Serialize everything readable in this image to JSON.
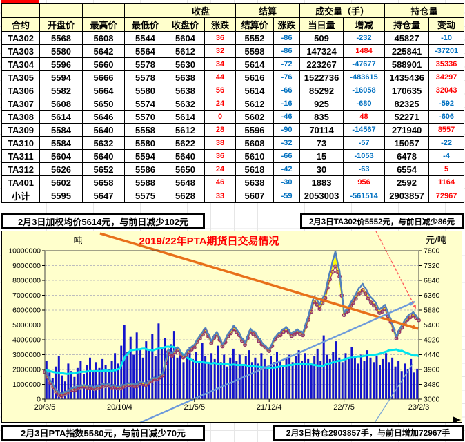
{
  "table": {
    "header_groups": [
      "收盘",
      "结算",
      "成交量（手）",
      "持仓量"
    ],
    "columns": [
      "合约",
      "开盘价",
      "最高价",
      "最低价",
      "收盘价",
      "涨跌",
      "结算价",
      "涨跌",
      "当日量",
      "增减",
      "持仓量",
      "变动"
    ],
    "rows": [
      [
        "TA302",
        "5568",
        "5608",
        "5544",
        "5604",
        "36",
        "5552",
        "-86",
        "509",
        "-232",
        "45827",
        "-10"
      ],
      [
        "TA303",
        "5580",
        "5642",
        "5564",
        "5612",
        "32",
        "5598",
        "-86",
        "147324",
        "1484",
        "225841",
        "-37201"
      ],
      [
        "TA304",
        "5596",
        "5660",
        "5578",
        "5630",
        "34",
        "5614",
        "-72",
        "223267",
        "-47677",
        "588901",
        "35336"
      ],
      [
        "TA305",
        "5594",
        "5666",
        "5578",
        "5638",
        "44",
        "5616",
        "-76",
        "1522736",
        "-483615",
        "1435436",
        "34297"
      ],
      [
        "TA306",
        "5582",
        "5664",
        "5580",
        "5638",
        "56",
        "5614",
        "-66",
        "85292",
        "-16058",
        "170635",
        "32043"
      ],
      [
        "TA307",
        "5608",
        "5650",
        "5574",
        "5632",
        "24",
        "5612",
        "-16",
        "925",
        "-680",
        "82325",
        "-592"
      ],
      [
        "TA308",
        "5614",
        "5646",
        "5570",
        "5614",
        "0",
        "5602",
        "-46",
        "835",
        "48",
        "52271",
        "-606"
      ],
      [
        "TA309",
        "5584",
        "5640",
        "5558",
        "5612",
        "28",
        "5596",
        "-90",
        "70114",
        "-14567",
        "271940",
        "8557"
      ],
      [
        "TA310",
        "5584",
        "5632",
        "5580",
        "5622",
        "38",
        "5608",
        "-32",
        "73",
        "-57",
        "15057",
        "-22"
      ],
      [
        "TA311",
        "5604",
        "5640",
        "5594",
        "5640",
        "36",
        "5610",
        "-66",
        "15",
        "-1053",
        "6478",
        "-4"
      ],
      [
        "TA312",
        "5626",
        "5652",
        "5586",
        "5650",
        "24",
        "5618",
        "-42",
        "30",
        "-63",
        "6554",
        "5"
      ],
      [
        "TA401",
        "5602",
        "5658",
        "5588",
        "5648",
        "46",
        "5638",
        "-30",
        "1883",
        "956",
        "2592",
        "1164"
      ],
      [
        "小计",
        "5595",
        "5647",
        "5575",
        "5628",
        "33",
        "5607",
        "-59",
        "2053003",
        "-561514",
        "2903857",
        "72967"
      ]
    ],
    "positive_color": "#FF0000",
    "negative_color": "#0070C0"
  },
  "callouts": {
    "top_left": "2月3日加权均价5614元，与前日减少102元",
    "top_right": "2月3日TA302价5552元，与前日减少86元",
    "bottom_left": "2月3日PTA指数5580元，与前日减少70元",
    "bottom_right": "2月3日持仓2903857手，与前日增加72967手"
  },
  "chart_data": {
    "type": "bar",
    "title": "2019/22年PTA期货日交易情况",
    "title_color": "#FF0000",
    "left_axis": {
      "label": "吨",
      "min": 0,
      "max": 10000000,
      "step": 1000000
    },
    "right_axis": {
      "label": "元/吨",
      "min": 3000,
      "max": 7800,
      "step": 480
    },
    "x_ticks": [
      "20/3/5",
      "20/10/4",
      "21/5/5",
      "21/12/4",
      "22/7/5",
      "23/2/3"
    ],
    "background": "#FFFFCC",
    "grid": true,
    "price_x": [
      0,
      0.015,
      0.03,
      0.045,
      0.06,
      0.075,
      0.09,
      0.105,
      0.12,
      0.135,
      0.15,
      0.165,
      0.18,
      0.195,
      0.21,
      0.225,
      0.24,
      0.255,
      0.27,
      0.285,
      0.3,
      0.315,
      0.33,
      0.34,
      0.355,
      0.37,
      0.385,
      0.4,
      0.415,
      0.43,
      0.445,
      0.46,
      0.475,
      0.49,
      0.505,
      0.52,
      0.535,
      0.55,
      0.565,
      0.58,
      0.6,
      0.615,
      0.63,
      0.645,
      0.66,
      0.675,
      0.69,
      0.705,
      0.72,
      0.735,
      0.75,
      0.762,
      0.777,
      0.788,
      0.8,
      0.812,
      0.825,
      0.838,
      0.85,
      0.865,
      0.88,
      0.895,
      0.91,
      0.925,
      0.94,
      0.955,
      0.97,
      0.985,
      1.0
    ],
    "series": [
      {
        "name": "成交量-bars",
        "axis": "left",
        "kind": "bar",
        "color": "#1414CC",
        "values": [
          2600000,
          1800000,
          1400000,
          2200000,
          2900000,
          1600000,
          1200000,
          2400000,
          1900000,
          1500000,
          2100000,
          2600000,
          1700000,
          2300000,
          2800000,
          1900000,
          2500000,
          2100000,
          2700000,
          2300000,
          2000000,
          2600000,
          3100000,
          2400000,
          3600000,
          5000000,
          3200000,
          4200000,
          3000000,
          4500000,
          3400000,
          2800000,
          3900000,
          3300000,
          4400000,
          2900000,
          5100000,
          3500000,
          4100000,
          3000000,
          3700000,
          4600000,
          2800000,
          3300000,
          2500000,
          3000000,
          3500000,
          2700000,
          3200000,
          2600000,
          3800000,
          2900000,
          2400000,
          3100000,
          2700000,
          3600000,
          2500000,
          3000000,
          2200000,
          2800000,
          3400000,
          2600000,
          3000000,
          2300000,
          2900000,
          3300000,
          2500000,
          2800000,
          2400000,
          3100000,
          2700000,
          2200000,
          2900000,
          2500000,
          3200000,
          2600000,
          2300000,
          2800000,
          3000000,
          2500000,
          2900000,
          3300000,
          2600000,
          3100000,
          2700000,
          2400000,
          2900000,
          3400000,
          2600000,
          4300000,
          3000000,
          2700000,
          3200000,
          3900000,
          2800000,
          2500000,
          3100000,
          2700000,
          3500000,
          2900000,
          2400000,
          3000000,
          2600000,
          3300000,
          2800000,
          2500000,
          2900000,
          2300000,
          2700000,
          3100000,
          2500000,
          2800000,
          2200000,
          2600000,
          1900000,
          2400000,
          2000000,
          2700000,
          1800000,
          2050000
        ]
      },
      {
        "name": "持仓量",
        "axis": "left",
        "kind": "line",
        "color": "#00E5EE",
        "width": 3,
        "x": [
          0,
          0.03,
          0.06,
          0.1,
          0.14,
          0.18,
          0.2,
          0.215,
          0.23,
          0.26,
          0.29,
          0.32,
          0.34,
          0.36,
          0.38,
          0.4,
          0.43,
          0.46,
          0.49,
          0.52,
          0.55,
          0.58,
          0.6,
          0.63,
          0.66,
          0.69,
          0.72,
          0.74,
          0.76,
          0.79,
          0.82,
          0.85,
          0.88,
          0.9,
          0.92,
          0.94,
          0.96,
          0.98,
          1.0
        ],
        "values": [
          1950000,
          1800000,
          1700000,
          1850000,
          1900000,
          1900000,
          2050000,
          2900000,
          3300000,
          3400000,
          3300000,
          3500000,
          3550000,
          3250000,
          2800000,
          2550000,
          2450000,
          2400000,
          2350000,
          2300000,
          2250000,
          2150000,
          2100000,
          2200000,
          2300000,
          2400000,
          2300000,
          2200000,
          2400000,
          2600000,
          2800000,
          2900000,
          3000000,
          3100000,
          3300000,
          3350000,
          3200000,
          3000000,
          2903857
        ]
      },
      {
        "name": "PTA指数",
        "axis": "right",
        "kind": "line",
        "color": "#A0A0A0",
        "width": 1.6,
        "values": [
          3840,
          3500,
          3180,
          3050,
          3160,
          3270,
          3340,
          3380,
          3340,
          3300,
          3370,
          3410,
          3350,
          3310,
          3370,
          3430,
          3370,
          3470,
          3430,
          3550,
          3620,
          3740,
          4500,
          4370,
          4560,
          4320,
          4500,
          4640,
          4940,
          5170,
          4780,
          5060,
          4680,
          5000,
          5240,
          5040,
          4730,
          5160,
          5000,
          4740,
          4530,
          4900,
          5040,
          5210,
          5010,
          5140,
          5040,
          5540,
          6120,
          5890,
          6240,
          6840,
          7490,
          6940,
          5690,
          5820,
          6090,
          6360,
          6500,
          6220,
          6000,
          5760,
          5890,
          5470,
          4950,
          5280,
          5540,
          5680,
          5580
        ]
      },
      {
        "name": "加权均价",
        "axis": "right",
        "kind": "line",
        "color": "#FFFF00",
        "width": 2.6,
        "values": [
          3900,
          3560,
          3250,
          3140,
          3230,
          3330,
          3400,
          3440,
          3400,
          3360,
          3430,
          3470,
          3410,
          3370,
          3430,
          3490,
          3430,
          3530,
          3490,
          3610,
          3680,
          3800,
          4560,
          4430,
          4620,
          4380,
          4560,
          4700,
          5000,
          5230,
          4840,
          5120,
          4740,
          5060,
          5300,
          5100,
          4790,
          5220,
          5060,
          4800,
          4590,
          4960,
          5100,
          5270,
          5070,
          5200,
          5100,
          5600,
          6180,
          5950,
          6300,
          6900,
          7560,
          7000,
          5750,
          5880,
          6150,
          6420,
          6560,
          6280,
          6060,
          5820,
          5950,
          5530,
          5000,
          5340,
          5600,
          5740,
          5614
        ]
      },
      {
        "name": "结算价",
        "axis": "right",
        "kind": "scatter",
        "color": "#993366",
        "width": 1,
        "values": [
          3880,
          3530,
          3230,
          3110,
          3210,
          3300,
          3380,
          3410,
          3370,
          3340,
          3400,
          3450,
          3380,
          3350,
          3400,
          3460,
          3410,
          3500,
          3460,
          3580,
          3650,
          3770,
          4530,
          4400,
          4590,
          4350,
          4530,
          4670,
          4970,
          5200,
          4810,
          5090,
          4710,
          5030,
          5270,
          5070,
          4760,
          5190,
          5030,
          4770,
          4560,
          4930,
          5070,
          5240,
          5040,
          5170,
          5070,
          5570,
          6150,
          5920,
          6270,
          6870,
          7300,
          6970,
          5720,
          5850,
          6120,
          6390,
          6530,
          6250,
          6030,
          5790,
          5920,
          5500,
          4970,
          5310,
          5570,
          5710,
          5552
        ]
      },
      {
        "name": "期货价",
        "axis": "right",
        "kind": "line",
        "color": "#4F81BD",
        "width": 2.4,
        "values": [
          3950,
          3600,
          3300,
          3180,
          3260,
          3360,
          3430,
          3470,
          3430,
          3390,
          3460,
          3500,
          3440,
          3400,
          3460,
          3520,
          3460,
          3560,
          3520,
          3640,
          3700,
          3820,
          4620,
          4480,
          4680,
          4420,
          4600,
          4760,
          5060,
          5300,
          4880,
          5180,
          4780,
          5120,
          5380,
          5150,
          4820,
          5280,
          5120,
          4840,
          4620,
          5000,
          5160,
          5340,
          5120,
          5260,
          5150,
          5700,
          6320,
          6050,
          6450,
          7100,
          7780,
          7150,
          5800,
          5950,
          6250,
          6550,
          6730,
          6420,
          6180,
          5900,
          6050,
          5600,
          5030,
          5400,
          5680,
          5820,
          5604
        ]
      }
    ],
    "annotations": [
      {
        "name": "downtrend-arrow",
        "color": "#E8701A",
        "width": 3.5,
        "x1": 142,
        "y1": 3,
        "x2": 603,
        "y2": 141,
        "arrow": true,
        "asize": 9
      },
      {
        "name": "uptrend-arrow",
        "color": "#6D9ADB",
        "width": 2.4,
        "x1": 200,
        "y1": 277,
        "x2": 598,
        "y2": 102,
        "arrow": true,
        "asize": 8
      },
      {
        "name": "leader-settle-arrow",
        "color": "#FF5A5A",
        "width": 1.3,
        "dash": "4,2",
        "x1": 542,
        "y1": 0,
        "x2": 600,
        "y2": 112,
        "arrow": true,
        "asize": 6
      },
      {
        "name": "leader-oi",
        "color": "#7BA7D7",
        "width": 1.3,
        "x1": 540,
        "y1": 277,
        "x2": 595,
        "y2": 192,
        "arrow": false
      }
    ],
    "corner_arrow_color": "#000000"
  }
}
